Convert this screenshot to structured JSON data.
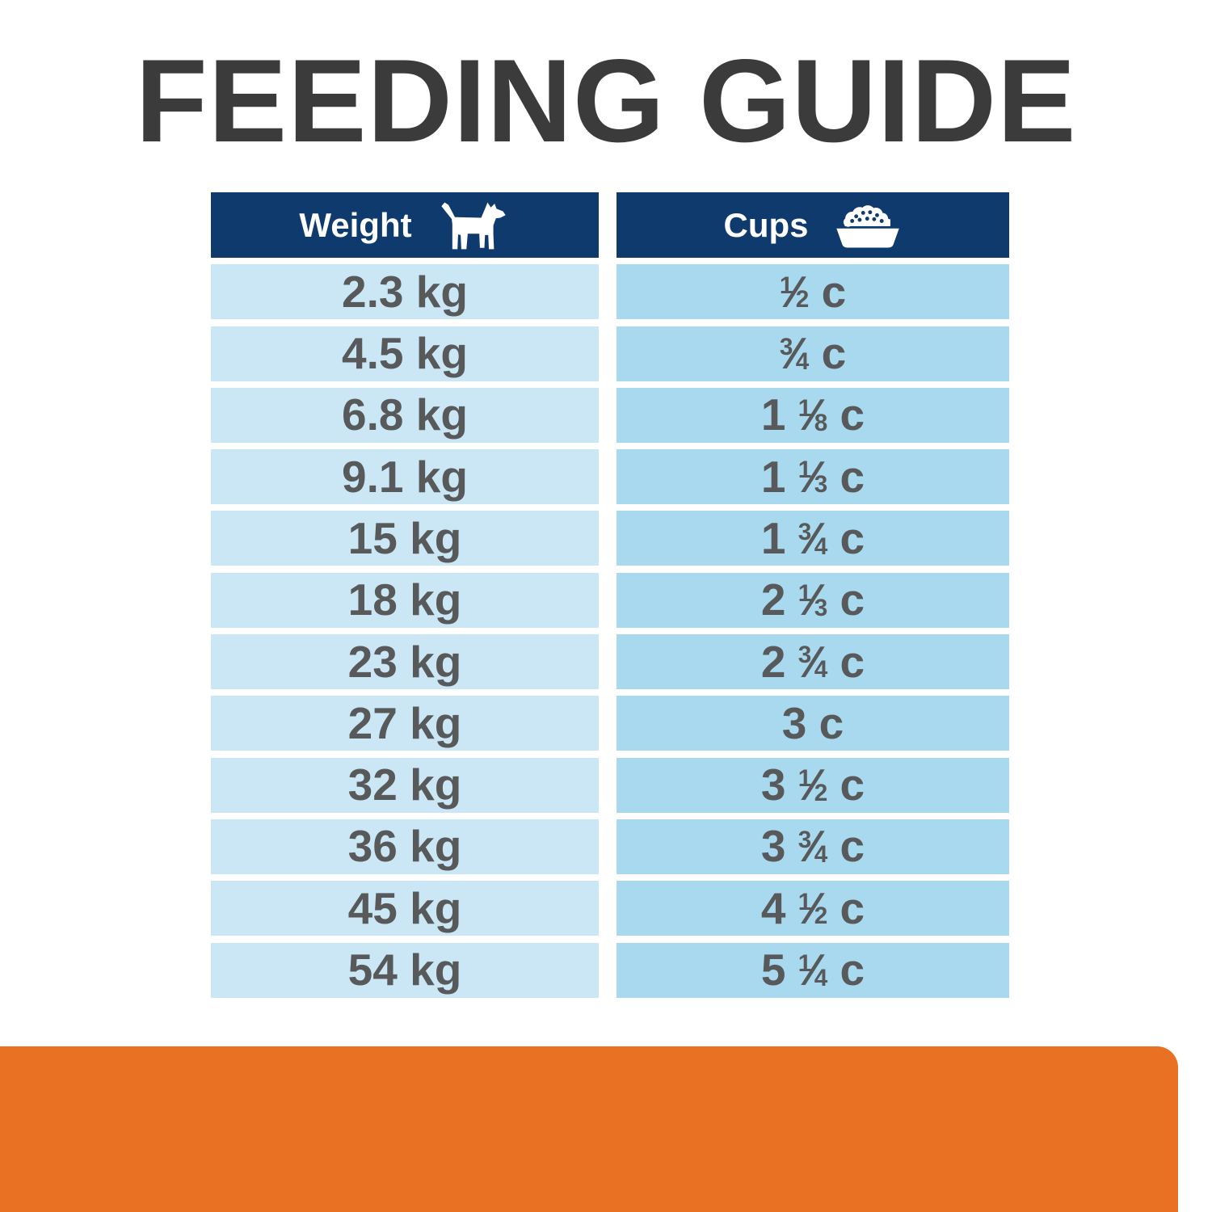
{
  "title": "FEEDING GUIDE",
  "colors": {
    "navy": "#0e3a6e",
    "weight_cell": "#cbe7f5",
    "cups_cell": "#a9d9ef",
    "cell_text": "#58595b",
    "title_text": "#3b3b3b",
    "orange": "#e87124",
    "white": "#ffffff"
  },
  "table": {
    "header": {
      "weight_label": "Weight",
      "weight_icon": "dog-icon",
      "cups_label": "Cups",
      "cups_icon": "food-bowl-icon"
    },
    "unit": "c",
    "rows": [
      {
        "weight": "2.3 kg",
        "cups_text": "½ c",
        "whole": "",
        "num": "1",
        "den": "2"
      },
      {
        "weight": "4.5 kg",
        "cups_text": "¾ c",
        "whole": "",
        "num": "3",
        "den": "4"
      },
      {
        "weight": "6.8 kg",
        "cups_text": "1 ⅛ c",
        "whole": "1",
        "num": "1",
        "den": "8"
      },
      {
        "weight": "9.1 kg",
        "cups_text": "1 ⅓ c",
        "whole": "1",
        "num": "1",
        "den": "3"
      },
      {
        "weight": "15 kg",
        "cups_text": "1 ¾ c",
        "whole": "1",
        "num": "3",
        "den": "4"
      },
      {
        "weight": "18 kg",
        "cups_text": "2 ⅓ c",
        "whole": "2",
        "num": "1",
        "den": "3"
      },
      {
        "weight": "23 kg",
        "cups_text": "2 ¾ c",
        "whole": "2",
        "num": "3",
        "den": "4"
      },
      {
        "weight": "27 kg",
        "cups_text": "3 c",
        "whole": "3",
        "num": "",
        "den": ""
      },
      {
        "weight": "32 kg",
        "cups_text": "3 ½ c",
        "whole": "3",
        "num": "1",
        "den": "2"
      },
      {
        "weight": "36 kg",
        "cups_text": "3 ¾ c",
        "whole": "3",
        "num": "3",
        "den": "4"
      },
      {
        "weight": "45 kg",
        "cups_text": "4 ½ c",
        "whole": "4",
        "num": "1",
        "den": "2"
      },
      {
        "weight": "54 kg",
        "cups_text": "5 ¼ c",
        "whole": "5",
        "num": "1",
        "den": "4"
      }
    ]
  },
  "chart_data": {
    "type": "table",
    "title": "FEEDING GUIDE",
    "columns": [
      "Weight",
      "Cups"
    ],
    "rows": [
      [
        "2.3 kg",
        "½ c"
      ],
      [
        "4.5 kg",
        "¾ c"
      ],
      [
        "6.8 kg",
        "1 ⅛ c"
      ],
      [
        "9.1 kg",
        "1 ⅓ c"
      ],
      [
        "15 kg",
        "1 ¾ c"
      ],
      [
        "18 kg",
        "2 ⅓ c"
      ],
      [
        "23 kg",
        "2 ¾ c"
      ],
      [
        "27 kg",
        "3 c"
      ],
      [
        "32 kg",
        "3 ½ c"
      ],
      [
        "36 kg",
        "3 ¾ c"
      ],
      [
        "45 kg",
        "4 ½ c"
      ],
      [
        "54 kg",
        "5 ¼ c"
      ]
    ],
    "weights_kg": [
      2.3,
      4.5,
      6.8,
      9.1,
      15,
      18,
      23,
      27,
      32,
      36,
      45,
      54
    ],
    "cups_numeric": [
      0.5,
      0.75,
      1.125,
      1.333,
      1.75,
      2.333,
      2.75,
      3,
      3.5,
      3.75,
      4.5,
      5.25
    ]
  }
}
